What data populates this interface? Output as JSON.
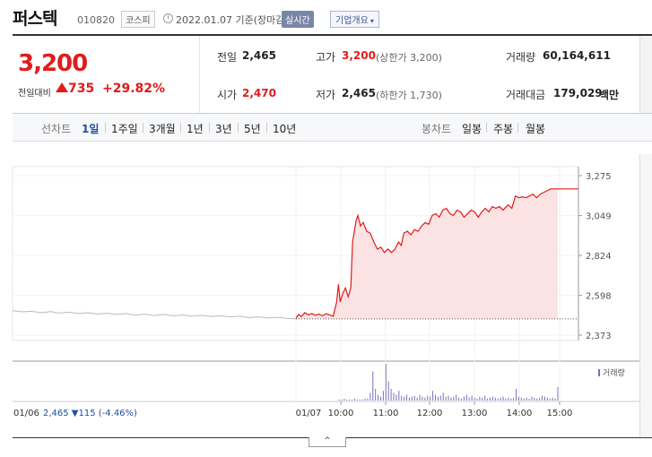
{
  "header": {
    "name": "퍼스텍",
    "code": "010820",
    "market": "코스피",
    "date": "2022.01.07",
    "date_suffix": "기준(장마감)",
    "realtime_label": "실시간",
    "company_overview_label": "기업개요"
  },
  "summary": {
    "price": "3,200",
    "change_label": "전일대비",
    "change_value": "735",
    "change_rate": "+29.82%",
    "prev_close_label": "전일",
    "prev_close": "2,465",
    "open_label": "시가",
    "open": "2,470",
    "high_label": "고가",
    "high": "3,200",
    "upper_limit": "(상한가 3,200)",
    "low_label": "저가",
    "low": "2,465",
    "lower_limit": "(하한가 1,730)",
    "volume_label": "거래량",
    "volume": "60,164,611",
    "value_label": "거래대금",
    "value": "179,029",
    "value_unit": "백만"
  },
  "tabs": {
    "line_label": "선차트",
    "periods": [
      "1일",
      "1주일",
      "3개월",
      "1년",
      "3년",
      "5년",
      "10년"
    ],
    "candle_label": "봉차트",
    "candles": [
      "일봉",
      "주봉",
      "월봉"
    ]
  },
  "chart_data": {
    "type": "line",
    "y_ticks": [
      "3,275",
      "3,049",
      "2,824",
      "2,598",
      "2,373"
    ],
    "x_ticks": [
      "01/06",
      "01/07",
      "10:00",
      "11:00",
      "12:00",
      "13:00",
      "14:00",
      "15:00"
    ],
    "legend": "거래량",
    "prev_day_summary": {
      "close": "2,465",
      "change": "115",
      "rate": "(-4.46%)"
    },
    "prev_day_series": [
      2512,
      2505,
      2508,
      2500,
      2506,
      2498,
      2503,
      2495,
      2500,
      2492,
      2497,
      2490,
      2495,
      2486,
      2492,
      2484,
      2490,
      2482,
      2487,
      2480,
      2485,
      2478,
      2483,
      2476,
      2480,
      2472,
      2477,
      2470,
      2474,
      2468,
      2465
    ],
    "today_series": [
      [
        0,
        2470
      ],
      [
        3,
        2490
      ],
      [
        6,
        2478
      ],
      [
        10,
        2500
      ],
      [
        14,
        2488
      ],
      [
        18,
        2495
      ],
      [
        22,
        2485
      ],
      [
        26,
        2492
      ],
      [
        30,
        2482
      ],
      [
        34,
        2494
      ],
      [
        38,
        2488
      ],
      [
        42,
        2480
      ],
      [
        46,
        2560
      ],
      [
        48,
        2660
      ],
      [
        50,
        2560
      ],
      [
        53,
        2610
      ],
      [
        56,
        2640
      ],
      [
        59,
        2590
      ],
      [
        62,
        2640
      ],
      [
        64,
        2900
      ],
      [
        66,
        2960
      ],
      [
        68,
        3020
      ],
      [
        70,
        3050
      ],
      [
        73,
        2990
      ],
      [
        76,
        3010
      ],
      [
        80,
        2960
      ],
      [
        84,
        2950
      ],
      [
        88,
        2900
      ],
      [
        92,
        2860
      ],
      [
        96,
        2870
      ],
      [
        100,
        2840
      ],
      [
        104,
        2860
      ],
      [
        108,
        2840
      ],
      [
        112,
        2860
      ],
      [
        116,
        2900
      ],
      [
        119,
        2880
      ],
      [
        122,
        2950
      ],
      [
        126,
        2960
      ],
      [
        130,
        2940
      ],
      [
        134,
        2970
      ],
      [
        138,
        2960
      ],
      [
        142,
        2990
      ],
      [
        146,
        3010
      ],
      [
        150,
        3000
      ],
      [
        154,
        3050
      ],
      [
        158,
        3060
      ],
      [
        162,
        3040
      ],
      [
        166,
        3080
      ],
      [
        170,
        3090
      ],
      [
        174,
        3060
      ],
      [
        178,
        3050
      ],
      [
        182,
        3080
      ],
      [
        186,
        3070
      ],
      [
        190,
        3040
      ],
      [
        194,
        3060
      ],
      [
        198,
        3080
      ],
      [
        202,
        3070
      ],
      [
        206,
        3040
      ],
      [
        210,
        3070
      ],
      [
        214,
        3090
      ],
      [
        218,
        3070
      ],
      [
        222,
        3100
      ],
      [
        226,
        3090
      ],
      [
        230,
        3100
      ],
      [
        234,
        3080
      ],
      [
        238,
        3100
      ],
      [
        240,
        3110
      ],
      [
        244,
        3090
      ],
      [
        248,
        3160
      ],
      [
        252,
        3150
      ],
      [
        256,
        3155
      ],
      [
        260,
        3150
      ],
      [
        264,
        3160
      ],
      [
        268,
        3170
      ],
      [
        272,
        3150
      ],
      [
        276,
        3170
      ],
      [
        280,
        3180
      ],
      [
        284,
        3190
      ],
      [
        288,
        3200
      ],
      [
        292,
        3200
      ],
      [
        296,
        3200
      ]
    ],
    "today_volume": [
      1,
      1,
      2,
      1,
      1,
      1,
      2,
      1,
      1,
      1,
      2,
      2,
      8,
      30,
      12,
      6,
      4,
      10,
      38,
      20,
      12,
      8,
      6,
      10,
      5,
      4,
      6,
      3,
      4,
      5,
      3,
      6,
      4,
      3,
      5,
      4,
      10,
      6,
      4,
      5,
      8,
      4,
      5,
      3,
      4,
      6,
      3,
      2,
      4,
      6,
      3,
      5,
      3,
      2,
      4,
      3,
      5,
      2,
      3,
      4,
      3,
      2,
      3,
      4,
      2,
      3,
      2,
      3,
      12,
      4,
      3,
      2,
      3,
      2,
      4,
      3,
      2,
      3,
      5,
      4,
      3,
      2,
      3,
      2,
      14
    ]
  },
  "colors": {
    "accent": "#e21b1b",
    "line": "#e21b1b",
    "fill": "#fbe3e3",
    "prev": "#bbbbbb",
    "volume": "#7b6fb8",
    "blue": "#1e4fa8"
  }
}
